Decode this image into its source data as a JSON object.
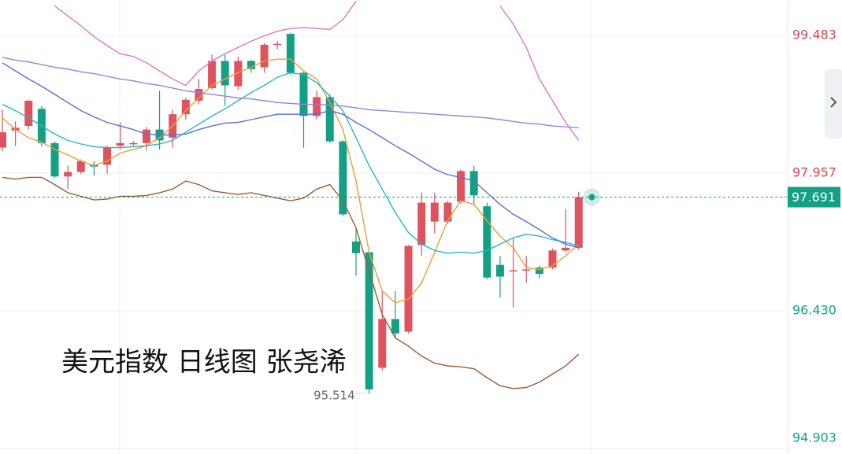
{
  "chart_data": {
    "type": "candlestick",
    "title": "美元指数 日线图 张尧浠",
    "open": [
      98.24,
      98.43,
      98.48,
      98.67,
      98.29,
      97.92,
      97.97,
      98.05,
      98.05,
      98.26,
      98.29,
      98.29,
      98.44,
      98.35,
      98.61,
      98.76,
      98.9,
      99.2,
      98.92,
      99.2,
      99.13,
      99.38,
      99.5,
      99.07,
      98.59,
      98.8,
      98.31,
      97.2,
      97.08,
      95.8,
      96.34,
      96.2,
      97.16,
      97.42,
      97.42,
      97.64,
      97.98,
      97.59,
      96.94,
      96.88,
      96.88,
      96.91,
      96.91,
      97.1,
      97.13
    ],
    "high": [
      98.66,
      98.53,
      98.77,
      98.7,
      98.31,
      98.04,
      98.11,
      98.09,
      98.26,
      98.52,
      98.31,
      98.47,
      98.87,
      98.66,
      98.79,
      99.0,
      99.27,
      99.27,
      99.25,
      99.21,
      99.4,
      99.42,
      99.51,
      99.08,
      98.87,
      98.83,
      98.32,
      97.35,
      97.09,
      96.65,
      96.65,
      97.16,
      97.74,
      97.74,
      97.65,
      98.0,
      98.04,
      97.63,
      97.04,
      97.24,
      97.04,
      96.93,
      97.12,
      97.56,
      97.75
    ],
    "low": [
      98.2,
      98.26,
      98.44,
      98.25,
      97.9,
      97.78,
      97.95,
      97.93,
      97.95,
      98.22,
      98.26,
      98.21,
      98.22,
      98.24,
      98.55,
      98.72,
      98.88,
      98.7,
      98.88,
      99.07,
      99.07,
      99.33,
      99.05,
      98.24,
      98.55,
      98.29,
      97.48,
      96.82,
      95.514,
      95.77,
      96.13,
      96.18,
      97.04,
      97.29,
      97.4,
      97.62,
      97.61,
      96.78,
      96.58,
      96.47,
      96.74,
      96.79,
      96.89,
      97.08,
      97.11
    ],
    "close": [
      98.41,
      98.46,
      98.76,
      98.29,
      97.92,
      97.97,
      98.09,
      98.03,
      98.24,
      98.29,
      98.29,
      98.44,
      98.32,
      98.61,
      98.77,
      98.89,
      99.2,
      98.93,
      99.2,
      99.11,
      99.38,
      99.39,
      99.07,
      98.59,
      98.8,
      98.31,
      97.5,
      97.07,
      95.56,
      96.34,
      96.18,
      97.15,
      97.63,
      97.63,
      97.63,
      97.98,
      97.71,
      96.8,
      96.81,
      96.88,
      96.89,
      96.84,
      97.1,
      97.13,
      97.69
    ],
    "up_color": "#e0525e",
    "down_color": "#14a085",
    "lines": [
      {
        "color": "#f39a3a",
        "values": [
          98.57,
          98.44,
          98.35,
          98.3,
          98.22,
          98.16,
          98.09,
          98.04,
          98.09,
          98.18,
          98.22,
          98.26,
          98.35,
          98.48,
          98.65,
          98.79,
          98.93,
          99.0,
          99.07,
          99.13,
          99.2,
          99.22,
          99.22,
          99.09,
          99.0,
          98.74,
          98.44,
          97.87,
          97.08,
          96.65,
          96.52,
          96.56,
          96.74,
          97.08,
          97.43,
          97.65,
          97.61,
          97.43,
          97.26,
          97.13,
          96.91,
          96.89,
          96.93,
          97.04,
          97.17
        ]
      },
      {
        "color": "#22b8c8",
        "values": [
          98.72,
          98.65,
          98.57,
          98.48,
          98.39,
          98.32,
          98.28,
          98.25,
          98.24,
          98.24,
          98.25,
          98.26,
          98.28,
          98.32,
          98.41,
          98.5,
          98.59,
          98.67,
          98.76,
          98.85,
          98.93,
          99.02,
          99.07,
          99.05,
          98.96,
          98.81,
          98.65,
          98.35,
          98.04,
          97.78,
          97.52,
          97.3,
          97.17,
          97.1,
          97.07,
          97.08,
          97.07,
          97.1,
          97.17,
          97.24,
          97.28,
          97.26,
          97.22,
          97.19,
          97.15
        ]
      },
      {
        "color": "#5b6fd6",
        "values": [
          99.18,
          99.09,
          99.0,
          98.92,
          98.83,
          98.74,
          98.65,
          98.58,
          98.52,
          98.48,
          98.44,
          98.39,
          98.38,
          98.38,
          98.39,
          98.44,
          98.48,
          98.51,
          98.52,
          98.55,
          98.58,
          98.61,
          98.61,
          98.61,
          98.61,
          98.65,
          98.61,
          98.52,
          98.44,
          98.35,
          98.26,
          98.18,
          98.09,
          98.0,
          97.94,
          97.91,
          97.87,
          97.74,
          97.61,
          97.5,
          97.42,
          97.33,
          97.24,
          97.17,
          97.13
        ]
      },
      {
        "color": "#a07fd8",
        "values": [
          99.24,
          99.21,
          99.19,
          99.16,
          99.13,
          99.11,
          99.08,
          99.06,
          99.03,
          99.0,
          98.98,
          98.95,
          98.93,
          98.9,
          98.87,
          98.85,
          98.83,
          98.81,
          98.79,
          98.78,
          98.76,
          98.74,
          98.73,
          98.72,
          98.72,
          98.71,
          98.7,
          98.68,
          98.66,
          98.65,
          98.64,
          98.63,
          98.62,
          98.61,
          98.6,
          98.59,
          98.58,
          98.57,
          98.55,
          98.53,
          98.51,
          98.5,
          98.48,
          98.47,
          98.46
        ]
      },
      {
        "color": "#dd77cc",
        "values": [
          null,
          null,
          null,
          null,
          99.81,
          99.7,
          99.59,
          99.47,
          99.37,
          99.28,
          99.25,
          99.18,
          99.09,
          99.0,
          98.93,
          99.09,
          99.2,
          99.28,
          99.35,
          99.42,
          99.48,
          99.53,
          99.56,
          99.57,
          99.56,
          99.55,
          99.66,
          99.86,
          null,
          null,
          null,
          null,
          null,
          null,
          null,
          null,
          null,
          null,
          99.81,
          99.61,
          99.35,
          99.0,
          98.76,
          98.52,
          98.32
        ]
      },
      {
        "color": "#9c5b32",
        "values": [
          97.91,
          97.89,
          97.91,
          97.91,
          97.83,
          97.74,
          97.7,
          97.66,
          97.67,
          97.7,
          97.7,
          97.71,
          97.74,
          97.78,
          97.87,
          97.83,
          97.76,
          97.74,
          97.72,
          97.74,
          97.71,
          97.68,
          97.65,
          97.68,
          97.78,
          97.83,
          97.65,
          97.35,
          96.87,
          96.39,
          96.13,
          96.04,
          95.93,
          95.85,
          95.82,
          95.81,
          95.79,
          95.69,
          95.6,
          95.57,
          95.58,
          95.64,
          95.73,
          95.82,
          95.95
        ]
      }
    ],
    "ylim": [
      94.844,
      99.876
    ],
    "yticks": [
      99.483,
      97.957,
      {
        "value": 96.43,
        "label": "96.430"
      },
      94.903
    ],
    "tick_colors": [
      "#d9474f",
      "#d9474f",
      "#14a085",
      "#14a085"
    ],
    "last_price": 97.691,
    "last_price_color": "#14a085",
    "low_label": 95.514,
    "grid": true
  }
}
